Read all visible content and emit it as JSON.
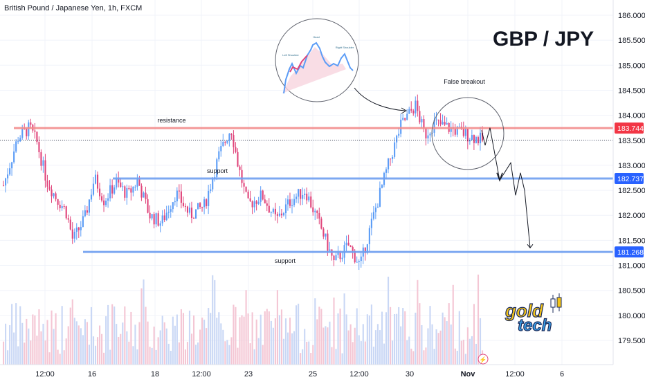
{
  "header": {
    "title": "British Pound / Japanese Yen, 1h, FXCM"
  },
  "overlay": {
    "symbol_title": "GBP / JPY"
  },
  "logo": {
    "line1": "gold",
    "line2": "tech"
  },
  "chart_data": {
    "type": "candlestick",
    "symbol": "British Pound / Japanese Yen",
    "interval": "1h",
    "source": "FXCM",
    "ylim": [
      178.9,
      186.3
    ],
    "y_ticks": [
      "186.000",
      "185.500",
      "185.000",
      "184.500",
      "184.000",
      "183.500",
      "183.000",
      "182.500",
      "182.000",
      "181.500",
      "181.000",
      "180.500",
      "180.000",
      "179.500"
    ],
    "x_ticks": [
      "12:00",
      "16",
      "18",
      "12:00",
      "23",
      "25",
      "12:00",
      "30",
      "Nov",
      "12:00",
      "6"
    ],
    "price_anchors": [
      {
        "t": 0,
        "v": 182.6
      },
      {
        "t": 0.03,
        "v": 183.55
      },
      {
        "t": 0.055,
        "v": 183.75
      },
      {
        "t": 0.07,
        "v": 183.45
      },
      {
        "t": 0.09,
        "v": 182.7
      },
      {
        "t": 0.11,
        "v": 182.35
      },
      {
        "t": 0.13,
        "v": 182.1
      },
      {
        "t": 0.145,
        "v": 181.5
      },
      {
        "t": 0.17,
        "v": 181.95
      },
      {
        "t": 0.19,
        "v": 182.75
      },
      {
        "t": 0.21,
        "v": 182.3
      },
      {
        "t": 0.235,
        "v": 182.65
      },
      {
        "t": 0.26,
        "v": 182.4
      },
      {
        "t": 0.28,
        "v": 182.7
      },
      {
        "t": 0.305,
        "v": 182.0
      },
      {
        "t": 0.33,
        "v": 181.85
      },
      {
        "t": 0.36,
        "v": 182.45
      },
      {
        "t": 0.39,
        "v": 182.0
      },
      {
        "t": 0.42,
        "v": 182.2
      },
      {
        "t": 0.45,
        "v": 183.2
      },
      {
        "t": 0.475,
        "v": 183.75
      },
      {
        "t": 0.49,
        "v": 183.0
      },
      {
        "t": 0.51,
        "v": 182.2
      },
      {
        "t": 0.54,
        "v": 182.4
      },
      {
        "t": 0.57,
        "v": 181.9
      },
      {
        "t": 0.6,
        "v": 182.3
      },
      {
        "t": 0.63,
        "v": 182.5
      },
      {
        "t": 0.665,
        "v": 181.7
      },
      {
        "t": 0.69,
        "v": 181.05
      },
      {
        "t": 0.72,
        "v": 181.4
      },
      {
        "t": 0.745,
        "v": 181.0
      },
      {
        "t": 0.77,
        "v": 181.9
      },
      {
        "t": 0.8,
        "v": 182.9
      },
      {
        "t": 0.83,
        "v": 183.8
      },
      {
        "t": 0.86,
        "v": 184.2
      },
      {
        "t": 0.88,
        "v": 183.6
      },
      {
        "t": 0.9,
        "v": 183.85
      },
      {
        "t": 1.0,
        "v": 183.5
      }
    ],
    "levels": [
      {
        "name": "resistance",
        "value": 183.744,
        "label": "183.744",
        "color": "#f28c8c",
        "tag_color": "#f23645"
      },
      {
        "name": "support",
        "value": 182.737,
        "label": "182.737",
        "color": "#6f9ef0",
        "tag_color": "#2962ff"
      },
      {
        "name": "support",
        "value": 181.268,
        "label": "181.268",
        "color": "#6f9ef0",
        "tag_color": "#2962ff"
      }
    ],
    "current_price": 183.5,
    "annotations": [
      {
        "text": "resistance"
      },
      {
        "text": "support"
      },
      {
        "text": "support"
      },
      {
        "text": "False breakout"
      }
    ],
    "inset_labels": [
      "Left Shoulder",
      "Head",
      "Right Shoulder"
    ],
    "forecast_path": [
      183.7,
      183.4,
      183.75,
      182.7,
      183.05,
      182.4,
      182.85,
      182.5,
      181.35
    ],
    "up_color": "#5b9cf6",
    "down_color": "#e0457b",
    "volume_color_up": "#c9d7f5",
    "volume_color_down": "#f4c6d4"
  }
}
